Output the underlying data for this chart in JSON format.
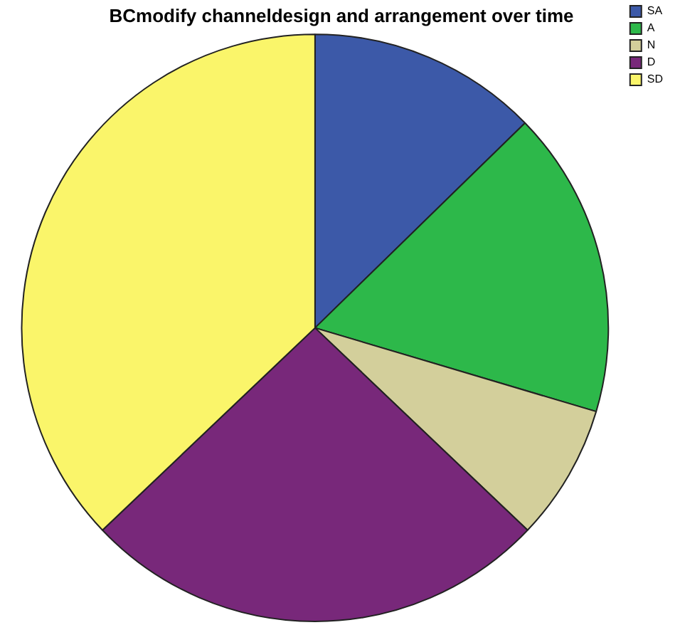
{
  "chart_data": {
    "type": "pie",
    "title": "BCmodify channeldesign and arrangement over time",
    "categories": [
      "SA",
      "A",
      "N",
      "D",
      "SD"
    ],
    "values": [
      12.7,
      16.9,
      7.5,
      25.8,
      37.1
    ],
    "colors": [
      "#3c59a8",
      "#2db84a",
      "#d3cf9b",
      "#78287a",
      "#faf56a"
    ],
    "legend": "top right"
  }
}
